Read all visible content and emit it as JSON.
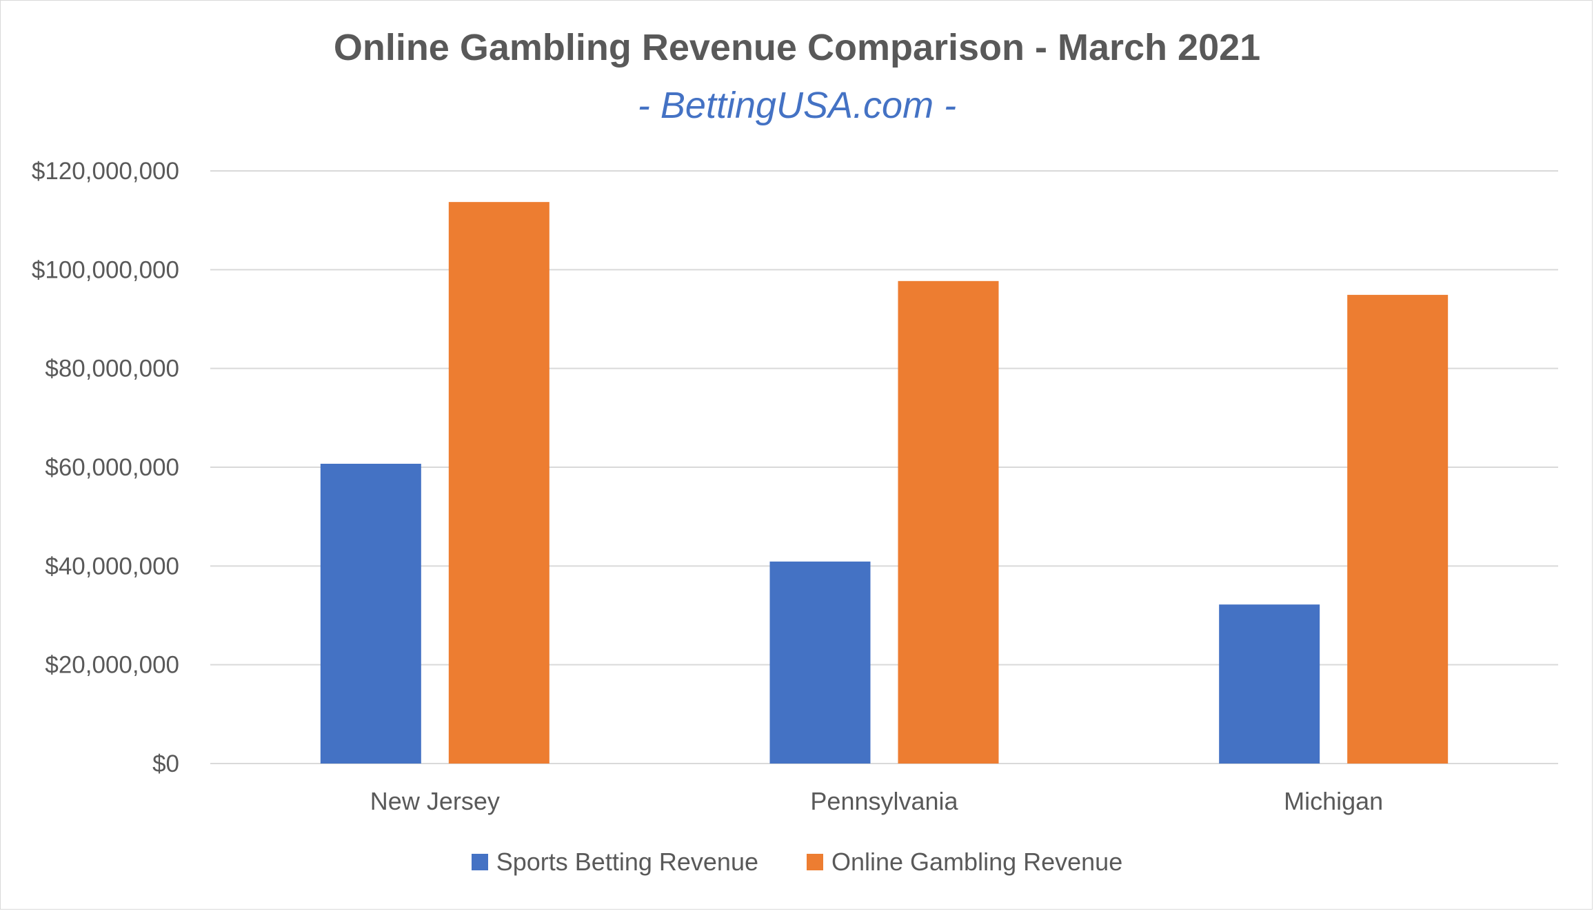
{
  "chart_data": {
    "type": "bar",
    "title": "Online Gambling Revenue Comparison - March 2021",
    "subtitle": "- BettingUSA.com -",
    "xlabel": "",
    "ylabel": "",
    "categories": [
      "New Jersey",
      "Pennsylvania",
      "Michigan"
    ],
    "series": [
      {
        "name": "Sports Betting Revenue",
        "color": "#4472c4",
        "values": [
          60700000,
          40900000,
          32200000
        ]
      },
      {
        "name": "Online Gambling Revenue",
        "color": "#ed7d31",
        "values": [
          113700000,
          97700000,
          94900000
        ]
      }
    ],
    "ylim": [
      0,
      120000000
    ],
    "yticks": [
      0,
      20000000,
      40000000,
      60000000,
      80000000,
      100000000,
      120000000
    ],
    "ytick_labels": [
      "$0",
      "$20,000,000",
      "$40,000,000",
      "$60,000,000",
      "$80,000,000",
      "$100,000,000",
      "$120,000,000"
    ],
    "grid": true,
    "legend": "bottom"
  }
}
